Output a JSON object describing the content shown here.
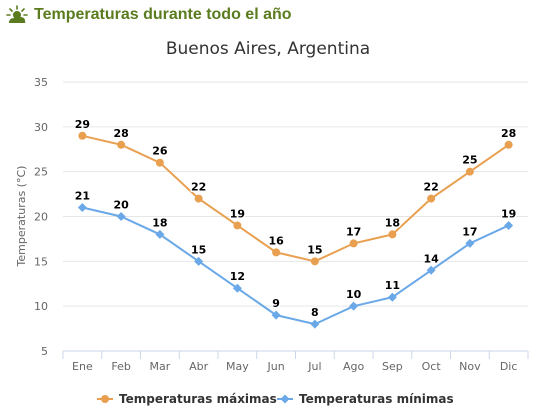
{
  "header": {
    "title": "Temperaturas durante todo el año",
    "icon": "sun-cloud-icon"
  },
  "colors": {
    "max": "#e8a050",
    "min": "#6aa8e8",
    "header": "#5b7b1f",
    "grid": "#e6e6e6"
  },
  "chart_data": {
    "type": "line",
    "title": "Buenos Aires, Argentina",
    "xlabel": "",
    "ylabel": "Temperaturas (°C)",
    "categories": [
      "Ene",
      "Feb",
      "Mar",
      "Abr",
      "May",
      "Jun",
      "Jul",
      "Ago",
      "Sep",
      "Oct",
      "Nov",
      "Dic"
    ],
    "ylim": [
      5,
      35
    ],
    "yticks": [
      5,
      10,
      15,
      20,
      25,
      30,
      35
    ],
    "grid": true,
    "legend": "bottom",
    "series": [
      {
        "name": "Temperaturas máximas",
        "color": "#e8a050",
        "marker": "circle",
        "values": [
          29,
          28,
          26,
          22,
          19,
          16,
          15,
          17,
          18,
          22,
          25,
          28
        ]
      },
      {
        "name": "Temperaturas mínimas",
        "color": "#6aa8e8",
        "marker": "diamond",
        "values": [
          21,
          20,
          18,
          15,
          12,
          9,
          8,
          10,
          11,
          14,
          17,
          19
        ]
      }
    ]
  }
}
